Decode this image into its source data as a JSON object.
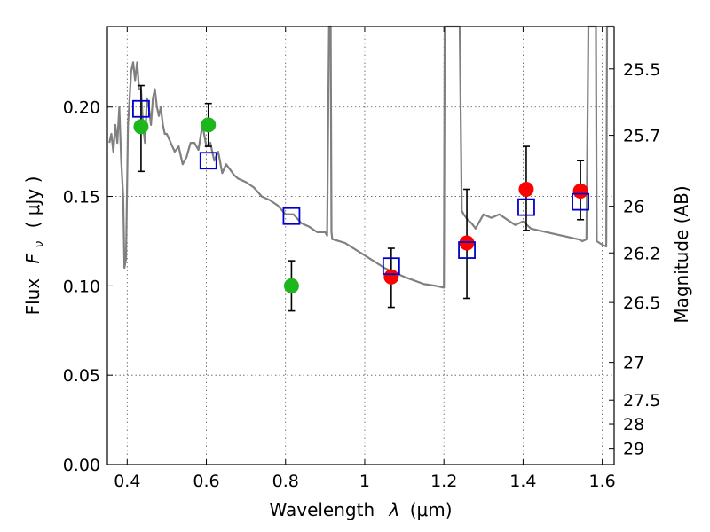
{
  "chart_data": {
    "type": "scatter",
    "xlabel_main": "Wavelength",
    "xlabel_var": "λ",
    "xlabel_unit": "(μm)",
    "ylabel_main": "Flux",
    "ylabel_var": "F",
    "ylabel_sub": "ν",
    "ylabel_unit": "( μJy )",
    "ylabel_right": "Magnitude (AB)",
    "xlim": [
      0.35,
      1.63
    ],
    "ylim": [
      0.0,
      0.245
    ],
    "grid": true,
    "x_ticks": [
      0.4,
      0.6,
      0.8,
      1.0,
      1.2,
      1.4,
      1.6
    ],
    "x_tick_labels": [
      "0.4",
      "0.6",
      "0.8",
      "1",
      "1.2",
      "1.4",
      "1.6"
    ],
    "y_ticks": [
      0.0,
      0.05,
      0.1,
      0.15,
      0.2
    ],
    "y_tick_labels": [
      "0.00",
      "0.05",
      "0.10",
      "0.15",
      "0.20"
    ],
    "right_ticks": [
      {
        "flux": 0.2213,
        "label": "25.5"
      },
      {
        "flux": 0.1842,
        "label": "25.7"
      },
      {
        "flux": 0.1445,
        "label": "26"
      },
      {
        "flux": 0.1184,
        "label": "26.2"
      },
      {
        "flux": 0.0907,
        "label": "26.5"
      },
      {
        "flux": 0.0572,
        "label": "27"
      },
      {
        "flux": 0.0361,
        "label": "27.5"
      },
      {
        "flux": 0.0228,
        "label": "28"
      },
      {
        "flux": 0.0091,
        "label": "29"
      }
    ],
    "colors": {
      "model": "#808080",
      "green": "#1db61d",
      "red": "#ff0000",
      "blue": "#0000cc",
      "errorbar": "#000000",
      "grid": "#555555"
    },
    "series": [
      {
        "kind": "model_spectrum",
        "x": [
          0.355,
          0.36,
          0.365,
          0.37,
          0.375,
          0.38,
          0.385,
          0.39,
          0.393,
          0.397,
          0.402,
          0.405,
          0.41,
          0.415,
          0.42,
          0.425,
          0.43,
          0.435,
          0.44,
          0.445,
          0.45,
          0.455,
          0.46,
          0.465,
          0.47,
          0.475,
          0.48,
          0.485,
          0.49,
          0.495,
          0.5,
          0.51,
          0.52,
          0.53,
          0.54,
          0.55,
          0.56,
          0.57,
          0.58,
          0.59,
          0.6,
          0.61,
          0.62,
          0.63,
          0.64,
          0.65,
          0.66,
          0.67,
          0.68,
          0.7,
          0.72,
          0.74,
          0.76,
          0.78,
          0.8,
          0.82,
          0.84,
          0.86,
          0.88,
          0.9,
          0.905,
          0.908,
          0.91,
          0.912,
          0.914,
          0.916,
          0.918,
          0.92,
          0.95,
          1.0,
          1.05,
          1.1,
          1.15,
          1.18,
          1.2,
          1.202,
          1.204,
          1.206,
          1.208,
          1.21,
          1.212,
          1.214,
          1.216,
          1.218,
          1.22,
          1.222,
          1.224,
          1.226,
          1.228,
          1.23,
          1.232,
          1.234,
          1.236,
          1.238,
          1.24,
          1.245,
          1.25,
          1.26,
          1.27,
          1.28,
          1.3,
          1.32,
          1.34,
          1.36,
          1.38,
          1.4,
          1.42,
          1.44,
          1.46,
          1.48,
          1.5,
          1.52,
          1.54,
          1.55,
          1.56,
          1.565,
          1.568,
          1.57,
          1.572,
          1.574,
          1.576,
          1.578,
          1.58,
          1.582,
          1.584,
          1.586,
          1.6,
          1.61,
          1.612,
          1.614,
          1.616,
          1.618,
          1.62,
          1.63
        ],
        "y": [
          0.18,
          0.185,
          0.175,
          0.19,
          0.18,
          0.2,
          0.17,
          0.15,
          0.11,
          0.115,
          0.19,
          0.2,
          0.22,
          0.225,
          0.215,
          0.225,
          0.21,
          0.21,
          0.19,
          0.18,
          0.205,
          0.2,
          0.19,
          0.205,
          0.21,
          0.2,
          0.195,
          0.2,
          0.19,
          0.185,
          0.185,
          0.18,
          0.175,
          0.178,
          0.168,
          0.172,
          0.18,
          0.18,
          0.176,
          0.19,
          0.178,
          0.18,
          0.17,
          0.175,
          0.163,
          0.168,
          0.165,
          0.162,
          0.16,
          0.158,
          0.155,
          0.15,
          0.148,
          0.145,
          0.14,
          0.14,
          0.135,
          0.133,
          0.13,
          0.13,
          0.128,
          0.2,
          0.245,
          0.245,
          0.245,
          0.13,
          0.126,
          0.126,
          0.124,
          0.117,
          0.11,
          0.105,
          0.101,
          0.1,
          0.099,
          0.245,
          0.245,
          0.245,
          0.245,
          0.245,
          0.245,
          0.245,
          0.245,
          0.245,
          0.245,
          0.245,
          0.245,
          0.245,
          0.245,
          0.245,
          0.245,
          0.245,
          0.245,
          0.245,
          0.245,
          0.142,
          0.14,
          0.137,
          0.135,
          0.132,
          0.14,
          0.138,
          0.14,
          0.137,
          0.134,
          0.136,
          0.132,
          0.131,
          0.13,
          0.129,
          0.128,
          0.127,
          0.126,
          0.125,
          0.126,
          0.245,
          0.245,
          0.245,
          0.245,
          0.245,
          0.245,
          0.245,
          0.245,
          0.245,
          0.245,
          0.125,
          0.123,
          0.122,
          0.245,
          0.245,
          0.245,
          0.245,
          0.245,
          0.245
        ]
      },
      {
        "kind": "green_points",
        "x": [
          0.435,
          0.605,
          0.815
        ],
        "y": [
          0.189,
          0.19,
          0.1
        ]
      },
      {
        "kind": "red_points",
        "x": [
          1.067,
          1.258,
          1.408,
          1.545
        ],
        "y": [
          0.105,
          0.124,
          0.154,
          0.153
        ]
      },
      {
        "kind": "blue_squares",
        "x": [
          0.435,
          0.605,
          0.815,
          1.067,
          1.258,
          1.408,
          1.545
        ],
        "y": [
          0.199,
          0.17,
          0.139,
          0.111,
          0.12,
          0.144,
          0.147
        ]
      },
      {
        "kind": "error_bars",
        "x": [
          0.435,
          0.605,
          0.815,
          1.067,
          1.258,
          1.408,
          1.545
        ],
        "y_low": [
          0.164,
          0.178,
          0.086,
          0.088,
          0.093,
          0.131,
          0.137
        ],
        "y_high": [
          0.212,
          0.202,
          0.114,
          0.121,
          0.154,
          0.178,
          0.17
        ]
      }
    ]
  }
}
